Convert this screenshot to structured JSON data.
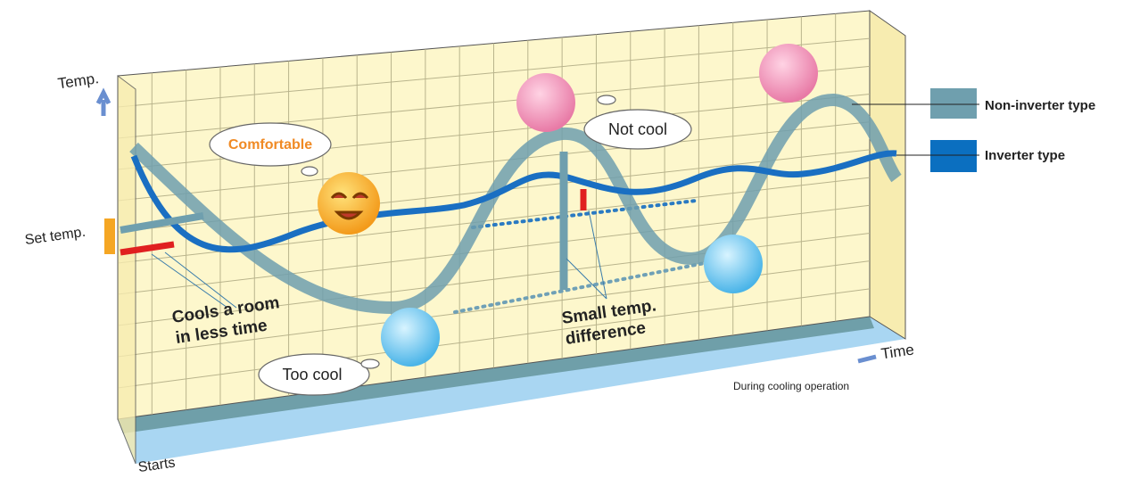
{
  "axis": {
    "y_label": "Temp.",
    "x_label": "Time",
    "start_label": "Starts",
    "set_temp_label": "Set temp."
  },
  "bubbles": {
    "comfortable": "Comfortable",
    "not_cool": "Not cool",
    "too_cool": "Too cool"
  },
  "annotations": {
    "cools_room": [
      "Cools a room",
      "in less time"
    ],
    "small_diff": [
      "Small temp.",
      "difference"
    ],
    "operation": "During cooling operation"
  },
  "legend": [
    {
      "label": "Non-inverter type"
    },
    {
      "label": "Inverter type"
    }
  ]
}
